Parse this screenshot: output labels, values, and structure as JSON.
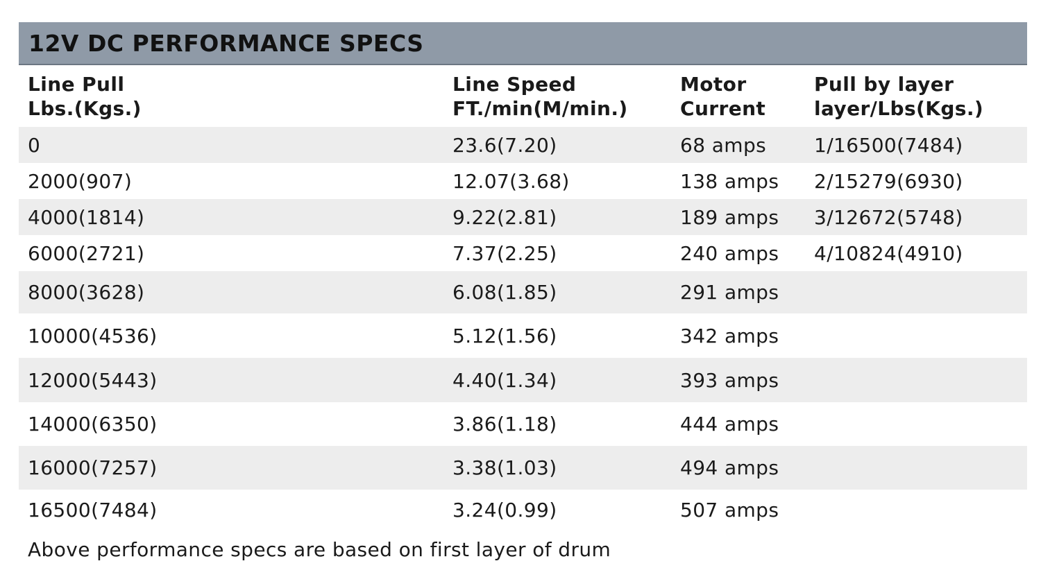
{
  "table": {
    "title": "12V DC PERFORMANCE SPECS",
    "headers": {
      "line_pull": [
        "Line Pull",
        "Lbs.(Kgs.)"
      ],
      "line_speed": [
        "Line Speed",
        "FT./min(M/min.)"
      ],
      "motor_current": [
        "Motor",
        "Current"
      ],
      "pull_by_layer": [
        "Pull by layer",
        "layer/Lbs(Kgs.)"
      ]
    },
    "rows": [
      {
        "line_pull": "0",
        "line_speed": "23.6(7.20)",
        "motor_current": "68 amps",
        "pull_by_layer": "1/16500(7484)"
      },
      {
        "line_pull": "2000(907)",
        "line_speed": "12.07(3.68)",
        "motor_current": "138 amps",
        "pull_by_layer": "2/15279(6930)"
      },
      {
        "line_pull": "4000(1814)",
        "line_speed": "9.22(2.81)",
        "motor_current": "189 amps",
        "pull_by_layer": "3/12672(5748)"
      },
      {
        "line_pull": "6000(2721)",
        "line_speed": "7.37(2.25)",
        "motor_current": "240 amps",
        "pull_by_layer": "4/10824(4910)"
      },
      {
        "line_pull": "8000(3628)",
        "line_speed": "6.08(1.85)",
        "motor_current": "291 amps",
        "pull_by_layer": ""
      },
      {
        "line_pull": "10000(4536)",
        "line_speed": "5.12(1.56)",
        "motor_current": "342 amps",
        "pull_by_layer": ""
      },
      {
        "line_pull": "12000(5443)",
        "line_speed": "4.40(1.34)",
        "motor_current": "393 amps",
        "pull_by_layer": ""
      },
      {
        "line_pull": "14000(6350)",
        "line_speed": "3.86(1.18)",
        "motor_current": "444 amps",
        "pull_by_layer": ""
      },
      {
        "line_pull": "16000(7257)",
        "line_speed": "3.38(1.03)",
        "motor_current": "494 amps",
        "pull_by_layer": ""
      },
      {
        "line_pull": "16500(7484)",
        "line_speed": "3.24(0.99)",
        "motor_current": "507 amps",
        "pull_by_layer": ""
      }
    ],
    "footnote": "Above performance specs are based on first layer of drum"
  },
  "colors": {
    "title_bar": "#8f9aa7",
    "row_shade": "#ededed",
    "text": "#1a1a1a"
  }
}
